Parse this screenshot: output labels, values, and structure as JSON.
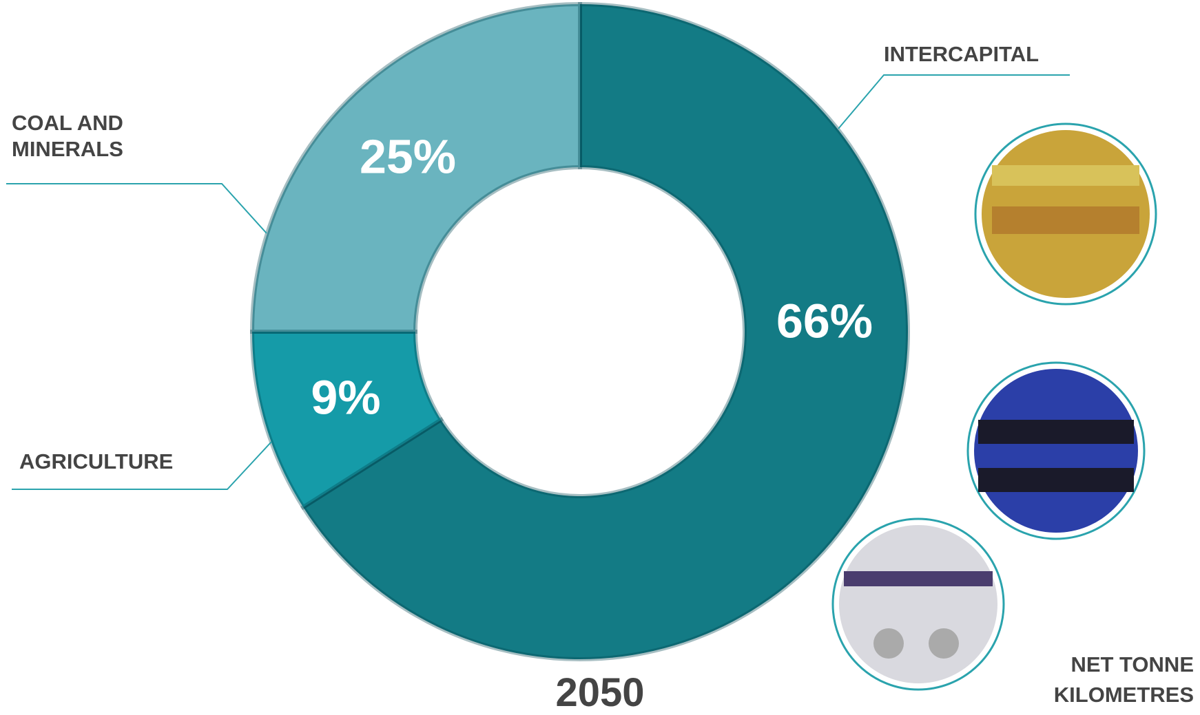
{
  "chart_data": {
    "type": "pie",
    "donut": true,
    "title": "2050",
    "subtitle": "NET TONNE KILOMETRES",
    "categories": [
      "INTERCAPITAL",
      "AGRICULTURE",
      "COAL AND MINERALS"
    ],
    "values": [
      66,
      9,
      25
    ],
    "value_labels": [
      "66%",
      "9%",
      "25%"
    ],
    "colors": [
      "#137b85",
      "#159ba8",
      "#6ab4bf"
    ]
  }
}
